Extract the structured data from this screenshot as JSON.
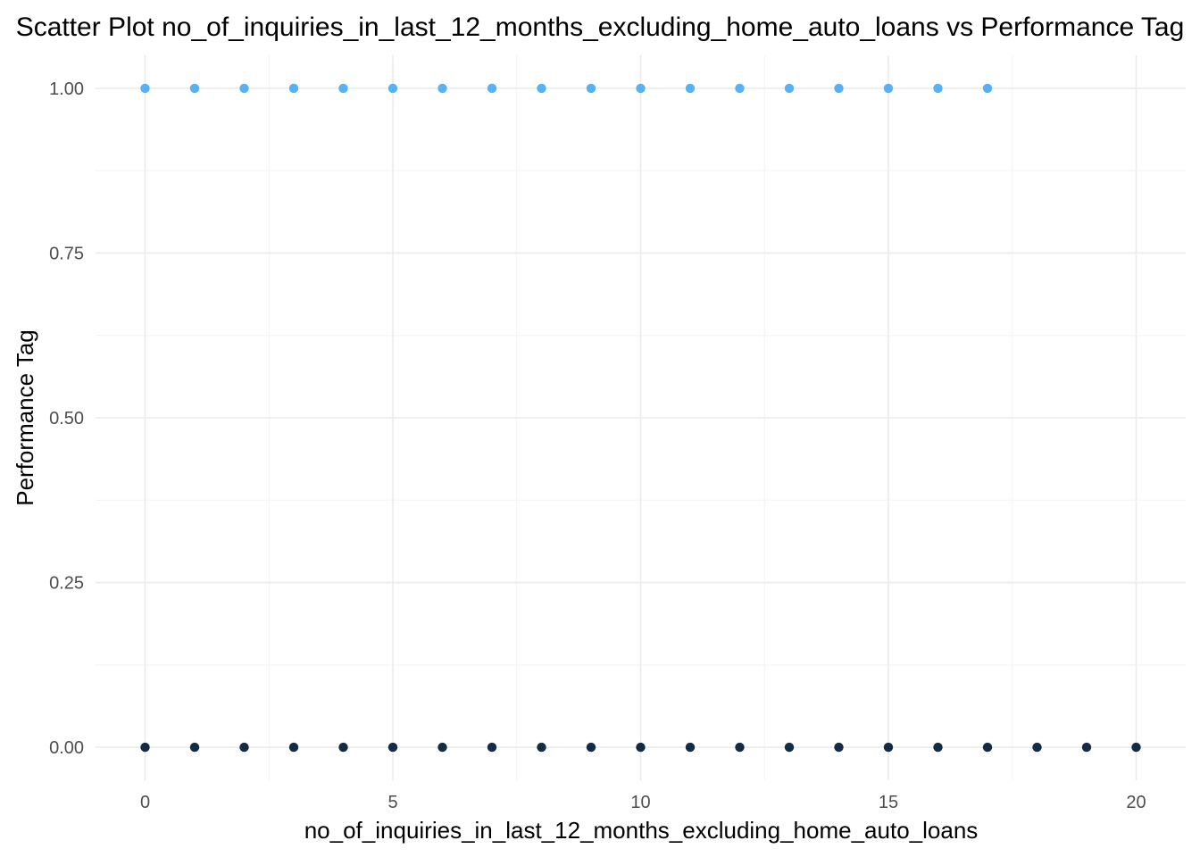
{
  "chart_data": {
    "type": "scatter",
    "title": "Scatter Plot no_of_inquiries_in_last_12_months_excluding_home_auto_loans vs Performance Tag",
    "xlabel": "no_of_inquiries_in_last_12_months_excluding_home_auto_loans",
    "ylabel": "Performance Tag",
    "xlim": [
      -1,
      21
    ],
    "ylim": [
      -0.05,
      1.05
    ],
    "x_ticks": [
      0,
      5,
      10,
      15,
      20
    ],
    "x_tick_labels": [
      "0",
      "5",
      "10",
      "15",
      "20"
    ],
    "y_ticks": [
      0,
      0.25,
      0.5,
      0.75,
      1
    ],
    "y_tick_labels": [
      "0.00",
      "0.25",
      "0.50",
      "0.75",
      "1.00"
    ],
    "x_minor_ticks": [
      2.5,
      7.5,
      12.5,
      17.5
    ],
    "y_minor_ticks": [
      0.125,
      0.375,
      0.625,
      0.875
    ],
    "grid": true,
    "legend": "none",
    "colors": {
      "tag_0": "#132b43",
      "tag_1": "#56b1f7"
    },
    "series": [
      {
        "color_key": "tag_1",
        "x": [
          0,
          1,
          2,
          3,
          4,
          5,
          6,
          7,
          8,
          9,
          10,
          11,
          12,
          13,
          14,
          15,
          16,
          17
        ],
        "y": [
          1,
          1,
          1,
          1,
          1,
          1,
          1,
          1,
          1,
          1,
          1,
          1,
          1,
          1,
          1,
          1,
          1,
          1
        ]
      },
      {
        "color_key": "tag_0",
        "x": [
          0,
          1,
          2,
          3,
          4,
          5,
          6,
          7,
          8,
          9,
          10,
          11,
          12,
          13,
          14,
          15,
          16,
          17,
          18,
          19,
          20
        ],
        "y": [
          0,
          0,
          0,
          0,
          0,
          0,
          0,
          0,
          0,
          0,
          0,
          0,
          0,
          0,
          0,
          0,
          0,
          0,
          0,
          0,
          0
        ]
      }
    ]
  }
}
